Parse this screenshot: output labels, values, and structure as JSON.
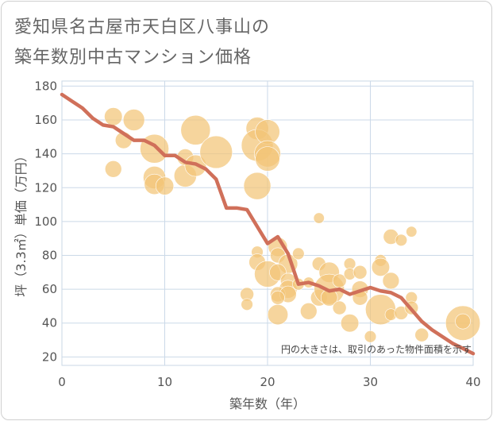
{
  "title_line1": "愛知県名古屋市天白区八事山の",
  "title_line2": "築年数別中古マンション価格",
  "chart_data": {
    "type": "scatter",
    "xlabel": "築年数（年）",
    "ylabel": "坪（3.3㎡）単価（万円）",
    "note": "円の大きさは、取引のあった物件面積を示す",
    "xlim": [
      0,
      40
    ],
    "ylim": [
      15,
      183
    ],
    "xticks": [
      0,
      10,
      20,
      30,
      40
    ],
    "yticks": [
      20,
      40,
      60,
      80,
      100,
      120,
      140,
      160,
      180
    ],
    "grid": true,
    "colors": {
      "bubble": "#f3c577",
      "line": "#d0705a",
      "grid": "#cbd9e8"
    },
    "trend_line": {
      "x": [
        0,
        1,
        2,
        3,
        4,
        5,
        6,
        7,
        8,
        9,
        10,
        11,
        12,
        13,
        14,
        15,
        16,
        17,
        18,
        19,
        20,
        21,
        22,
        23,
        24,
        25,
        26,
        27,
        28,
        29,
        30,
        31,
        32,
        33,
        34,
        35,
        36,
        37,
        38,
        39,
        40
      ],
      "y": [
        175,
        171,
        167,
        161,
        157,
        156,
        152,
        148,
        148,
        145,
        139,
        139,
        135,
        134,
        131,
        125,
        108,
        108,
        107,
        97,
        87,
        91,
        81,
        63,
        64,
        62,
        59,
        60,
        57,
        59,
        61,
        59,
        58,
        55,
        48,
        41,
        36,
        32,
        28,
        25,
        22
      ]
    },
    "points": [
      {
        "x": 5,
        "y": 162,
        "s": 70
      },
      {
        "x": 7,
        "y": 160,
        "s": 100
      },
      {
        "x": 6,
        "y": 148,
        "s": 60
      },
      {
        "x": 5,
        "y": 131,
        "s": 60
      },
      {
        "x": 9,
        "y": 143,
        "s": 180
      },
      {
        "x": 9,
        "y": 126,
        "s": 110
      },
      {
        "x": 9,
        "y": 122,
        "s": 90
      },
      {
        "x": 10,
        "y": 121,
        "s": 70
      },
      {
        "x": 12,
        "y": 127,
        "s": 110
      },
      {
        "x": 12,
        "y": 138,
        "s": 60
      },
      {
        "x": 13,
        "y": 133,
        "s": 100
      },
      {
        "x": 13,
        "y": 154,
        "s": 190
      },
      {
        "x": 15,
        "y": 141,
        "s": 230
      },
      {
        "x": 19,
        "y": 155,
        "s": 110
      },
      {
        "x": 19,
        "y": 145,
        "s": 220
      },
      {
        "x": 20,
        "y": 153,
        "s": 130
      },
      {
        "x": 20,
        "y": 140,
        "s": 150
      },
      {
        "x": 20,
        "y": 137,
        "s": 130
      },
      {
        "x": 19,
        "y": 121,
        "s": 160
      },
      {
        "x": 19,
        "y": 82,
        "s": 30
      },
      {
        "x": 19,
        "y": 76,
        "s": 60
      },
      {
        "x": 21,
        "y": 85,
        "s": 80
      },
      {
        "x": 21,
        "y": 80,
        "s": 50
      },
      {
        "x": 20,
        "y": 69,
        "s": 150
      },
      {
        "x": 22,
        "y": 75,
        "s": 80
      },
      {
        "x": 21,
        "y": 70,
        "s": 60
      },
      {
        "x": 22,
        "y": 65,
        "s": 50
      },
      {
        "x": 22,
        "y": 60,
        "s": 70
      },
      {
        "x": 21,
        "y": 57,
        "s": 50
      },
      {
        "x": 22,
        "y": 57,
        "s": 60
      },
      {
        "x": 21,
        "y": 55,
        "s": 40
      },
      {
        "x": 18,
        "y": 57,
        "s": 40
      },
      {
        "x": 18,
        "y": 51,
        "s": 30
      },
      {
        "x": 21,
        "y": 45,
        "s": 90
      },
      {
        "x": 23,
        "y": 81,
        "s": 30
      },
      {
        "x": 23,
        "y": 63,
        "s": 30
      },
      {
        "x": 24,
        "y": 64,
        "s": 25
      },
      {
        "x": 24,
        "y": 47,
        "s": 60
      },
      {
        "x": 25,
        "y": 102,
        "s": 25
      },
      {
        "x": 25,
        "y": 75,
        "s": 40
      },
      {
        "x": 26,
        "y": 70,
        "s": 90
      },
      {
        "x": 25,
        "y": 55,
        "s": 60
      },
      {
        "x": 26,
        "y": 60,
        "s": 200
      },
      {
        "x": 26,
        "y": 55,
        "s": 60
      },
      {
        "x": 27,
        "y": 65,
        "s": 40
      },
      {
        "x": 27,
        "y": 49,
        "s": 40
      },
      {
        "x": 28,
        "y": 75,
        "s": 30
      },
      {
        "x": 28,
        "y": 69,
        "s": 30
      },
      {
        "x": 28,
        "y": 40,
        "s": 70
      },
      {
        "x": 29,
        "y": 70,
        "s": 40
      },
      {
        "x": 29,
        "y": 60,
        "s": 60
      },
      {
        "x": 29,
        "y": 55,
        "s": 50
      },
      {
        "x": 30,
        "y": 32,
        "s": 30
      },
      {
        "x": 31,
        "y": 77,
        "s": 30
      },
      {
        "x": 31,
        "y": 73,
        "s": 70
      },
      {
        "x": 31,
        "y": 48,
        "s": 200
      },
      {
        "x": 32,
        "y": 91,
        "s": 50
      },
      {
        "x": 32,
        "y": 65,
        "s": 60
      },
      {
        "x": 32,
        "y": 45,
        "s": 30
      },
      {
        "x": 33,
        "y": 89,
        "s": 30
      },
      {
        "x": 33,
        "y": 46,
        "s": 40
      },
      {
        "x": 34,
        "y": 94,
        "s": 25
      },
      {
        "x": 34,
        "y": 55,
        "s": 30
      },
      {
        "x": 34,
        "y": 49,
        "s": 40
      },
      {
        "x": 35,
        "y": 33,
        "s": 40
      },
      {
        "x": 39,
        "y": 40,
        "s": 260
      },
      {
        "x": 39,
        "y": 41,
        "s": 50
      }
    ]
  }
}
